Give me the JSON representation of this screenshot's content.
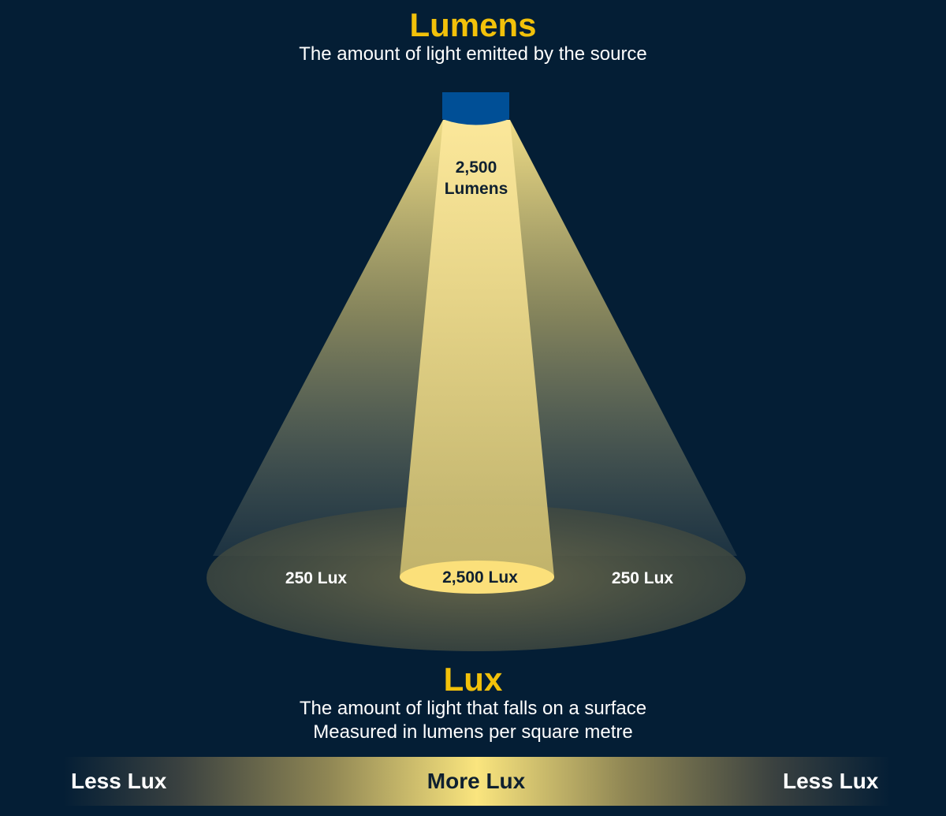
{
  "lumens": {
    "title": "Lumens",
    "description": "The amount of light emitted by the source"
  },
  "source_label": {
    "line1": "2,500",
    "line2": "Lumens"
  },
  "surface": {
    "left_label": "250 Lux",
    "center_label": "2,500 Lux",
    "right_label": "250 Lux"
  },
  "lux": {
    "title": "Lux",
    "description_line1": "The amount of light that falls on a surface",
    "description_line2": "Measured in lumens per square metre"
  },
  "scale_bar": {
    "left_label": "Less Lux",
    "center_label": "More Lux",
    "right_label": "Less Lux"
  },
  "colors": {
    "background": "#041e35",
    "accent_yellow": "#f2c10a",
    "light_source_blue": "#004f96",
    "beam_light": "#fbe68a",
    "hotspot": "#fbe07a"
  }
}
